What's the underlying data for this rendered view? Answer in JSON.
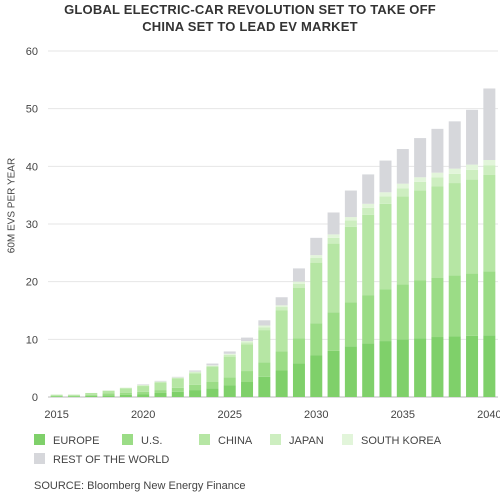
{
  "title_line1": "GLOBAL ELECTRIC-CAR REVOLUTION SET TO TAKE OFF",
  "title_line2": "CHINA SET TO LEAD EV MARKET",
  "source": "SOURCE: Bloomberg New Energy Finance",
  "chart_data": {
    "type": "bar",
    "stacked": true,
    "title": "GLOBAL ELECTRIC-CAR REVOLUTION SET TO TAKE OFF / CHINA SET TO LEAD EV MARKET",
    "ylabel": "60M EVS PER YEAR",
    "xlabel": "",
    "ylim": [
      0,
      60
    ],
    "yticks": [
      0,
      10,
      20,
      30,
      40,
      50,
      60
    ],
    "xticks": [
      2015,
      2020,
      2025,
      2030,
      2035,
      2040
    ],
    "grid": "horizontal",
    "legend_position": "bottom",
    "categories": [
      2015,
      2016,
      2017,
      2018,
      2019,
      2020,
      2021,
      2022,
      2023,
      2024,
      2025,
      2026,
      2027,
      2028,
      2029,
      2030,
      2031,
      2032,
      2033,
      2034,
      2035,
      2036,
      2037,
      2038,
      2039,
      2040
    ],
    "series": [
      {
        "name": "EUROPE",
        "color": "#7fd06a",
        "values": [
          0.1,
          0.1,
          0.2,
          0.3,
          0.4,
          0.5,
          0.7,
          0.9,
          1.2,
          1.5,
          2.0,
          2.6,
          3.5,
          4.6,
          5.8,
          7.2,
          8.0,
          8.8,
          9.3,
          9.7,
          10.0,
          10.2,
          10.4,
          10.5,
          10.6,
          10.7
        ]
      },
      {
        "name": "U.S.",
        "color": "#9bdc86",
        "values": [
          0.1,
          0.1,
          0.2,
          0.3,
          0.3,
          0.4,
          0.5,
          0.7,
          0.9,
          1.1,
          1.4,
          1.9,
          2.5,
          3.3,
          4.4,
          5.6,
          6.7,
          7.6,
          8.3,
          9.0,
          9.5,
          10.0,
          10.3,
          10.6,
          10.8,
          11.1
        ]
      },
      {
        "name": "CHINA",
        "color": "#b6e6a4",
        "values": [
          0.2,
          0.2,
          0.3,
          0.5,
          0.8,
          1.0,
          1.3,
          1.6,
          2.0,
          2.6,
          3.6,
          4.6,
          5.6,
          7.1,
          8.7,
          10.5,
          11.9,
          13.1,
          14.0,
          14.8,
          15.3,
          15.6,
          15.8,
          16.0,
          16.3,
          16.7
        ]
      },
      {
        "name": "JAPAN",
        "color": "#cdeec0",
        "values": [
          0.0,
          0.0,
          0.0,
          0.0,
          0.1,
          0.1,
          0.1,
          0.1,
          0.2,
          0.2,
          0.3,
          0.4,
          0.5,
          0.6,
          0.7,
          0.8,
          1.0,
          1.1,
          1.2,
          1.3,
          1.4,
          1.5,
          1.6,
          1.6,
          1.7,
          1.7
        ]
      },
      {
        "name": "SOUTH KOREA",
        "color": "#e2f5da",
        "values": [
          0.0,
          0.0,
          0.0,
          0.0,
          0.0,
          0.1,
          0.1,
          0.1,
          0.1,
          0.1,
          0.2,
          0.2,
          0.3,
          0.3,
          0.4,
          0.5,
          0.6,
          0.6,
          0.7,
          0.7,
          0.8,
          0.8,
          0.8,
          0.9,
          0.9,
          0.9
        ]
      },
      {
        "name": "REST OF THE WORLD",
        "color": "#d6d7db",
        "values": [
          0.0,
          0.0,
          0.0,
          0.0,
          0.0,
          0.1,
          0.1,
          0.1,
          0.2,
          0.3,
          0.4,
          0.6,
          0.9,
          1.4,
          2.3,
          3.0,
          3.8,
          4.6,
          5.1,
          5.5,
          6.0,
          6.8,
          7.6,
          8.2,
          9.5,
          12.4
        ]
      }
    ]
  }
}
